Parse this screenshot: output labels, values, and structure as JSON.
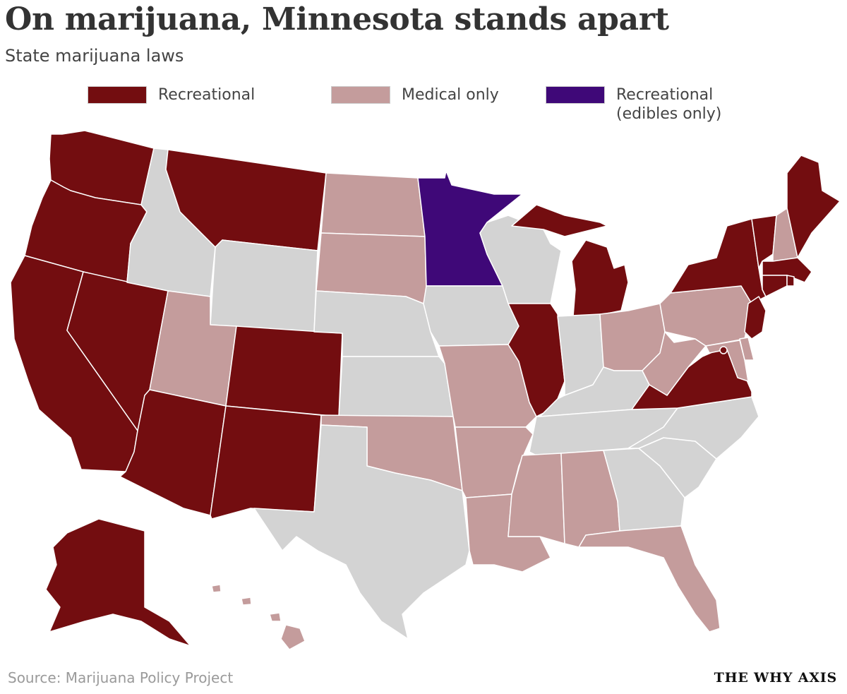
{
  "header": {
    "title": "On marijuana, Minnesota stands apart",
    "subtitle": "State marijuana laws"
  },
  "legend": [
    {
      "key": "recreational",
      "label": "Recreational",
      "color": "#730d10"
    },
    {
      "key": "medical",
      "label": "Medical only",
      "color": "#c49c9c"
    },
    {
      "key": "edibles",
      "label": "Recreational\n(edibles only)",
      "color": "#3f0878"
    }
  ],
  "colors": {
    "none": "#d3d3d3",
    "border": "#ffffff"
  },
  "states": [
    {
      "code": "WA",
      "status": "recreational"
    },
    {
      "code": "OR",
      "status": "recreational"
    },
    {
      "code": "CA",
      "status": "recreational"
    },
    {
      "code": "NV",
      "status": "recreational"
    },
    {
      "code": "ID",
      "status": "none"
    },
    {
      "code": "MT",
      "status": "recreational"
    },
    {
      "code": "WY",
      "status": "none"
    },
    {
      "code": "UT",
      "status": "medical"
    },
    {
      "code": "AZ",
      "status": "recreational"
    },
    {
      "code": "CO",
      "status": "recreational"
    },
    {
      "code": "NM",
      "status": "recreational"
    },
    {
      "code": "ND",
      "status": "medical"
    },
    {
      "code": "SD",
      "status": "medical"
    },
    {
      "code": "NE",
      "status": "none"
    },
    {
      "code": "KS",
      "status": "none"
    },
    {
      "code": "OK",
      "status": "medical"
    },
    {
      "code": "TX",
      "status": "none"
    },
    {
      "code": "MN",
      "status": "edibles"
    },
    {
      "code": "IA",
      "status": "none"
    },
    {
      "code": "MO",
      "status": "medical"
    },
    {
      "code": "AR",
      "status": "medical"
    },
    {
      "code": "LA",
      "status": "medical"
    },
    {
      "code": "WI",
      "status": "none"
    },
    {
      "code": "IL",
      "status": "recreational"
    },
    {
      "code": "MI",
      "status": "recreational"
    },
    {
      "code": "IN",
      "status": "none"
    },
    {
      "code": "OH",
      "status": "medical"
    },
    {
      "code": "KY",
      "status": "none"
    },
    {
      "code": "TN",
      "status": "none"
    },
    {
      "code": "MS",
      "status": "medical"
    },
    {
      "code": "AL",
      "status": "medical"
    },
    {
      "code": "GA",
      "status": "none"
    },
    {
      "code": "FL",
      "status": "medical"
    },
    {
      "code": "SC",
      "status": "none"
    },
    {
      "code": "NC",
      "status": "none"
    },
    {
      "code": "VA",
      "status": "recreational"
    },
    {
      "code": "WV",
      "status": "medical"
    },
    {
      "code": "PA",
      "status": "medical"
    },
    {
      "code": "NY",
      "status": "recreational"
    },
    {
      "code": "VT",
      "status": "recreational"
    },
    {
      "code": "NH",
      "status": "medical"
    },
    {
      "code": "ME",
      "status": "recreational"
    },
    {
      "code": "MA",
      "status": "recreational"
    },
    {
      "code": "CT",
      "status": "recreational"
    },
    {
      "code": "RI",
      "status": "recreational"
    },
    {
      "code": "NJ",
      "status": "recreational"
    },
    {
      "code": "DE",
      "status": "medical"
    },
    {
      "code": "MD",
      "status": "medical"
    },
    {
      "code": "DC",
      "status": "recreational"
    },
    {
      "code": "AK",
      "status": "recreational"
    },
    {
      "code": "HI",
      "status": "medical"
    }
  ],
  "footer": {
    "source": "Source: Marijuana Policy Project",
    "brand": "THE WHY AXIS"
  }
}
